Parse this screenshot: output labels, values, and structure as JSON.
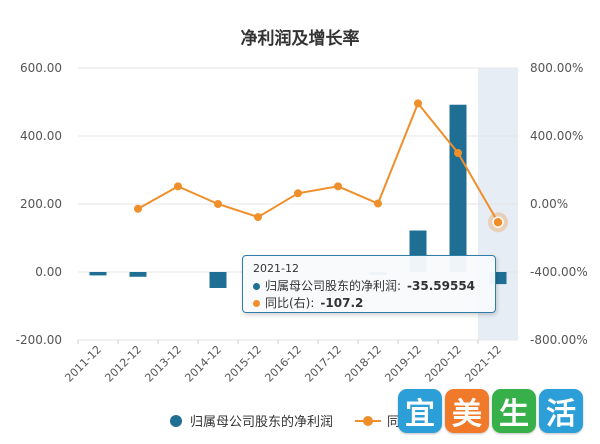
{
  "chart_data": {
    "type": "bar+line",
    "title": "净利润及增长率",
    "categories": [
      "2011-12",
      "2012-12",
      "2013-12",
      "2014-12",
      "2015-12",
      "2016-12",
      "2017-12",
      "2018-12",
      "2019-12",
      "2020-12",
      "2021-12"
    ],
    "series": [
      {
        "name": "归属母公司股东的净利润",
        "type": "bar",
        "axis": "left",
        "color": "#1f6e94",
        "values": [
          -10,
          -14,
          0,
          -47,
          0,
          0,
          0,
          -9,
          122,
          492,
          -35.59554
        ]
      },
      {
        "name": "同比(右)",
        "type": "line",
        "axis": "right",
        "color": "#ef8f2b",
        "values": [
          null,
          -28,
          104,
          0,
          -77,
          63,
          104,
          3,
          592,
          300,
          -107.2
        ]
      }
    ],
    "y_left": {
      "min": -200,
      "max": 600,
      "ticks": [
        "600.00",
        "400.00",
        "200.00",
        "0.00",
        "-200.00"
      ],
      "tick_values": [
        600,
        400,
        200,
        0,
        -200
      ]
    },
    "y_right": {
      "min": -800,
      "max": 800,
      "ticks": [
        "800.00%",
        "400.00%",
        "0.00%",
        "-400.00%",
        "-800.00%"
      ],
      "tick_values": [
        800,
        400,
        0,
        -400,
        -800
      ]
    },
    "grid": true,
    "highlighted_category": "2021-12",
    "legend_position": "bottom"
  },
  "tooltip": {
    "date": "2021-12",
    "row1_label": "归属母公司股东的净利润:",
    "row1_value": "-35.59554",
    "row2_label": "同比(右):",
    "row2_value": "-107.2"
  },
  "legend": {
    "bar_label": "归属母公司股东的净利润",
    "line_label": "同"
  },
  "watermark": {
    "chars": [
      "宜",
      "美",
      "生",
      "活"
    ],
    "colors": [
      "#2d9fd8",
      "#f07a2a",
      "#37b04a",
      "#2d9fd8"
    ]
  }
}
